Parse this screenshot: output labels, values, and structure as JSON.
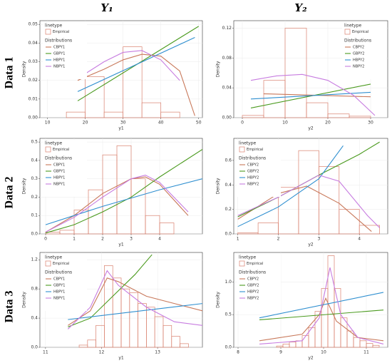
{
  "column_headers": [
    "Y₁",
    "Y₂"
  ],
  "row_labels": [
    "Data 1",
    "Data 2",
    "Data 3"
  ],
  "chart_data": [
    {
      "type": "histogram",
      "x_label": "y1",
      "y_label": "Density",
      "legend": "top-left",
      "legend_title": "linetype",
      "hist_name": "Empirical",
      "distributions_title": "Distributions",
      "hist_color": "#d9806e",
      "bins": [
        15,
        20,
        25,
        30,
        35,
        40,
        45
      ],
      "counts": [
        0.003,
        0.022,
        0.003,
        0.038,
        0.008,
        0.003
      ],
      "xlim": [
        8,
        51
      ],
      "xticks": [
        10,
        20,
        30,
        40,
        50
      ],
      "ylim": [
        0,
        0.052
      ],
      "yticks": [
        {
          "value": 0,
          "label": "0.00"
        },
        {
          "value": 0.01,
          "label": "0.01"
        },
        {
          "value": 0.02,
          "label": "0.02"
        },
        {
          "value": 0.03,
          "label": "0.03"
        },
        {
          "value": 0.04,
          "label": "0.04"
        },
        {
          "value": 0.05,
          "label": "0.05"
        }
      ],
      "series": [
        {
          "name": "CBPY1",
          "color": "#c8785a",
          "x": [
            18,
            25,
            30,
            35,
            40,
            45,
            49
          ],
          "values": [
            0.02,
            0.026,
            0.031,
            0.034,
            0.033,
            0.025,
            0.001
          ]
        },
        {
          "name": "GBPY1",
          "color": "#4a9a1e",
          "x": [
            18,
            50
          ],
          "values": [
            0.009,
            0.049
          ]
        },
        {
          "name": "HBPY1",
          "color": "#2f8fd0",
          "x": [
            18,
            49
          ],
          "values": [
            0.014,
            0.043
          ]
        },
        {
          "name": "NBPY1",
          "color": "#c77ce0",
          "x": [
            18,
            25,
            30,
            35,
            40,
            45
          ],
          "values": [
            0.021,
            0.03,
            0.035,
            0.036,
            0.031,
            0.02
          ]
        }
      ]
    },
    {
      "type": "histogram",
      "x_label": "y2",
      "y_label": "Density",
      "legend": "top-right",
      "legend_title": "linetype",
      "hist_name": "Empirical",
      "distributions_title": "Distributions",
      "hist_color": "#d9806e",
      "bins": [
        0,
        5,
        10,
        15,
        20,
        25,
        30
      ],
      "counts": [
        0.003,
        0.05,
        0.12,
        0.02,
        0.005,
        0.002
      ],
      "xlim": [
        -2,
        34
      ],
      "xticks": [
        0,
        10,
        20,
        30
      ],
      "ylim": [
        0,
        0.13
      ],
      "yticks": [
        {
          "value": 0,
          "label": "0.00"
        },
        {
          "value": 0.04,
          "label": "0.04"
        },
        {
          "value": 0.08,
          "label": "0.08"
        },
        {
          "value": 0.12,
          "label": "0.12"
        }
      ],
      "series": [
        {
          "name": "CBPY2",
          "color": "#c8785a",
          "x": [
            5,
            30
          ],
          "values": [
            0.032,
            0.028
          ]
        },
        {
          "name": "GBPY2",
          "color": "#4a9a1e",
          "x": [
            2,
            30
          ],
          "values": [
            0.013,
            0.045
          ]
        },
        {
          "name": "HBPY2",
          "color": "#2f8fd0",
          "x": [
            2,
            30
          ],
          "values": [
            0.025,
            0.034
          ]
        },
        {
          "name": "NBPY2",
          "color": "#c77ce0",
          "x": [
            2,
            8,
            14,
            20,
            26,
            31
          ],
          "values": [
            0.05,
            0.056,
            0.058,
            0.05,
            0.03,
            0.003
          ]
        }
      ]
    },
    {
      "type": "histogram",
      "x_label": "y1",
      "y_label": "Density",
      "legend": "top-left",
      "legend_title": "linetype",
      "hist_name": "Empirical",
      "distributions_title": "Distributions",
      "hist_color": "#d9806e",
      "bins": [
        0,
        0.5,
        1,
        1.5,
        2,
        2.5,
        3,
        3.5,
        4,
        4.5
      ],
      "counts": [
        0.01,
        0.02,
        0.13,
        0.24,
        0.43,
        0.48,
        0.3,
        0.1,
        0.06
      ],
      "xlim": [
        -0.2,
        5.5
      ],
      "xticks": [
        0,
        1,
        2,
        3,
        4
      ],
      "ylim": [
        0,
        0.52
      ],
      "yticks": [
        {
          "value": 0,
          "label": "0.0"
        },
        0.1,
        0.2,
        0.3,
        0.4,
        0.5
      ],
      "series": [
        {
          "name": "CBPY1",
          "color": "#c8785a",
          "x": [
            0,
            1,
            2,
            3,
            3.5,
            4,
            5
          ],
          "values": [
            0.01,
            0.1,
            0.22,
            0.3,
            0.31,
            0.27,
            0.1
          ]
        },
        {
          "name": "GBPY1",
          "color": "#4a9a1e",
          "x": [
            0,
            1,
            2,
            3,
            4,
            5.5
          ],
          "values": [
            0.005,
            0.05,
            0.12,
            0.2,
            0.31,
            0.46
          ]
        },
        {
          "name": "HBPY1",
          "color": "#2f8fd0",
          "x": [
            0,
            2,
            4,
            5.5
          ],
          "values": [
            0.05,
            0.15,
            0.24,
            0.3
          ]
        },
        {
          "name": "NBPY1",
          "color": "#c77ce0",
          "x": [
            0,
            1,
            2,
            3,
            3.5,
            4,
            5
          ],
          "values": [
            0.01,
            0.09,
            0.2,
            0.3,
            0.32,
            0.28,
            0.12
          ]
        }
      ]
    },
    {
      "type": "histogram",
      "x_label": "y2",
      "y_label": "Density",
      "legend": "top-left",
      "legend_title": "linetype",
      "hist_name": "Empirical",
      "distributions_title": "Distributions",
      "hist_color": "#d9806e",
      "bins": [
        1,
        1.5,
        2,
        2.5,
        3,
        3.5,
        4,
        4.5
      ],
      "counts": [
        0.01,
        0.09,
        0.38,
        0.68,
        0.55,
        0.2,
        0.07
      ],
      "xlim": [
        0.9,
        4.7
      ],
      "xticks": [
        1,
        2,
        3,
        4
      ],
      "ylim": [
        0,
        0.78
      ],
      "yticks": [
        {
          "value": 0,
          "label": "0.0"
        },
        0.2,
        0.4,
        0.6
      ],
      "series": [
        {
          "name": "CBPY2",
          "color": "#c8785a",
          "x": [
            1,
            2,
            2.7,
            3.5,
            4.3
          ],
          "values": [
            0.12,
            0.33,
            0.39,
            0.25,
            0.02
          ]
        },
        {
          "name": "GBPY2",
          "color": "#4a9a1e",
          "x": [
            1,
            2,
            3,
            4,
            4.5
          ],
          "values": [
            0.14,
            0.3,
            0.48,
            0.65,
            0.75
          ]
        },
        {
          "name": "HBPY2",
          "color": "#2f8fd0",
          "x": [
            1,
            2,
            3,
            3.6
          ],
          "values": [
            0.06,
            0.22,
            0.45,
            0.72
          ]
        },
        {
          "name": "NBPY2",
          "color": "#c77ce0",
          "x": [
            1,
            2,
            3,
            3.5,
            4.2,
            4.5
          ],
          "values": [
            0.15,
            0.3,
            0.48,
            0.43,
            0.15,
            0.05
          ]
        }
      ]
    },
    {
      "type": "histogram",
      "x_label": "y1",
      "y_label": "Density",
      "legend": "top-left",
      "legend_title": "linetype",
      "hist_name": "Empirical",
      "distributions_title": "Distributions",
      "hist_color": "#d9806e",
      "bins": [
        11.6,
        11.75,
        11.9,
        12.05,
        12.2,
        12.35,
        12.5,
        12.65,
        12.8,
        12.95,
        13.1,
        13.25,
        13.4,
        13.55
      ],
      "counts": [
        0.03,
        0.1,
        0.3,
        1.12,
        0.95,
        0.8,
        0.75,
        0.6,
        0.55,
        0.42,
        0.3,
        0.15,
        0.05
      ],
      "xlim": [
        10.9,
        13.8
      ],
      "xticks": [
        11,
        12,
        13
      ],
      "ylim": [
        0,
        1.3
      ],
      "yticks": [
        {
          "value": 0,
          "label": "0.0"
        },
        0.4,
        0.8,
        1.2
      ],
      "series": [
        {
          "name": "CBPY1",
          "color": "#c8785a",
          "x": [
            11.4,
            11.8,
            12.1,
            12.3,
            12.8,
            13.3,
            13.8
          ],
          "values": [
            0.3,
            0.5,
            0.95,
            0.9,
            0.7,
            0.6,
            0.5
          ]
        },
        {
          "name": "GBPY1",
          "color": "#4a9a1e",
          "x": [
            11.4,
            11.8,
            12.2,
            12.6,
            12.9
          ],
          "values": [
            0.28,
            0.4,
            0.7,
            1.0,
            1.27
          ]
        },
        {
          "name": "HBPY1",
          "color": "#2f8fd0",
          "x": [
            11.4,
            13.8
          ],
          "values": [
            0.38,
            0.6
          ]
        },
        {
          "name": "NBPY1",
          "color": "#c77ce0",
          "x": [
            11.4,
            11.8,
            12.1,
            12.3,
            12.8,
            13.3,
            13.8
          ],
          "values": [
            0.25,
            0.55,
            1.05,
            0.85,
            0.55,
            0.35,
            0.3
          ]
        }
      ]
    },
    {
      "type": "histogram",
      "x_label": "y2",
      "y_label": "Density",
      "legend": "top-left",
      "legend_title": "linetype",
      "hist_name": "Empirical",
      "distributions_title": "Distributions",
      "hist_color": "#d9806e",
      "bins": [
        8.9,
        9.05,
        9.2,
        9.35,
        9.5,
        9.65,
        9.8,
        9.95,
        10.1,
        10.25,
        10.4,
        10.55,
        10.7,
        10.85,
        11,
        11.15,
        11.3
      ],
      "counts": [
        0.02,
        0.05,
        0.08,
        0.1,
        0.18,
        0.3,
        0.55,
        0.9,
        1.4,
        0.9,
        0.45,
        0.25,
        0.15,
        0.1,
        0.06,
        0.03
      ],
      "xlim": [
        7.9,
        11.5
      ],
      "xticks": [
        8,
        9,
        10,
        11
      ],
      "ylim": [
        0,
        1.45
      ],
      "yticks": [
        {
          "value": 0,
          "label": "0.0"
        },
        0.5,
        {
          "value": 1,
          "label": "1.0"
        }
      ],
      "series": [
        {
          "name": "CBPY2",
          "color": "#c8785a",
          "x": [
            8.5,
            9.5,
            9.9,
            10.05,
            10.3,
            10.8,
            11.4
          ],
          "values": [
            0.1,
            0.2,
            0.5,
            0.75,
            0.4,
            0.15,
            0.1
          ]
        },
        {
          "name": "GBPY2",
          "color": "#4a9a1e",
          "x": [
            8.5,
            11.4
          ],
          "values": [
            0.42,
            0.57
          ]
        },
        {
          "name": "HBPY2",
          "color": "#2f8fd0",
          "x": [
            8.5,
            11.4
          ],
          "values": [
            0.45,
            0.84
          ]
        },
        {
          "name": "NBPY2",
          "color": "#c77ce0",
          "x": [
            8.5,
            9.5,
            9.9,
            10.15,
            10.4,
            10.8,
            11.4
          ],
          "values": [
            0.05,
            0.1,
            0.45,
            1.22,
            0.5,
            0.15,
            0.05
          ]
        }
      ]
    }
  ]
}
